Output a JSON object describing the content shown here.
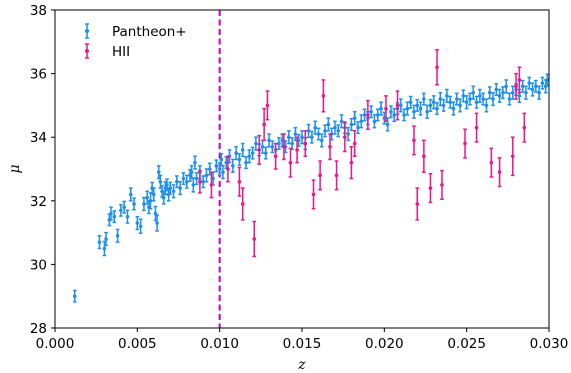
{
  "chart_data": {
    "type": "scatter",
    "xlabel": "z",
    "ylabel": "μ",
    "xlim": [
      0.0,
      0.03
    ],
    "ylim": [
      28,
      38
    ],
    "xticks": [
      0.0,
      0.005,
      0.01,
      0.015,
      0.02,
      0.025,
      0.03
    ],
    "xtick_labels": [
      "0.000",
      "0.005",
      "0.010",
      "0.015",
      "0.020",
      "0.025",
      "0.030"
    ],
    "yticks": [
      28,
      30,
      32,
      34,
      36,
      38
    ],
    "ytick_labels": [
      "28",
      "30",
      "32",
      "34",
      "36",
      "38"
    ],
    "grid": false,
    "legend_position": "top-left",
    "vline": {
      "x": 0.01,
      "color": "#c000c0",
      "style": "dashed"
    },
    "series": [
      {
        "name": "Pantheon+",
        "color": "#1f8fef",
        "points": [
          [
            0.0012,
            29.0,
            0.18
          ],
          [
            0.0027,
            30.7,
            0.2
          ],
          [
            0.003,
            30.5,
            0.22
          ],
          [
            0.0031,
            30.8,
            0.2
          ],
          [
            0.0033,
            31.4,
            0.18
          ],
          [
            0.0034,
            31.6,
            0.2
          ],
          [
            0.0036,
            31.5,
            0.18
          ],
          [
            0.0038,
            30.9,
            0.2
          ],
          [
            0.004,
            31.7,
            0.18
          ],
          [
            0.0042,
            31.8,
            0.18
          ],
          [
            0.0044,
            31.5,
            0.2
          ],
          [
            0.0046,
            32.2,
            0.2
          ],
          [
            0.0048,
            31.9,
            0.18
          ],
          [
            0.005,
            31.3,
            0.2
          ],
          [
            0.0052,
            31.2,
            0.22
          ],
          [
            0.0054,
            31.9,
            0.2
          ],
          [
            0.0056,
            32.1,
            0.2
          ],
          [
            0.0057,
            31.8,
            0.2
          ],
          [
            0.0058,
            32.0,
            0.25
          ],
          [
            0.0059,
            32.4,
            0.18
          ],
          [
            0.006,
            32.2,
            0.2
          ],
          [
            0.0061,
            31.6,
            0.22
          ],
          [
            0.0062,
            31.3,
            0.25
          ],
          [
            0.0063,
            32.9,
            0.2
          ],
          [
            0.0064,
            32.6,
            0.2
          ],
          [
            0.0065,
            32.3,
            0.18
          ],
          [
            0.0066,
            32.1,
            0.2
          ],
          [
            0.0067,
            32.4,
            0.2
          ],
          [
            0.0068,
            32.5,
            0.18
          ],
          [
            0.0069,
            32.2,
            0.2
          ],
          [
            0.007,
            32.4,
            0.18
          ],
          [
            0.0072,
            32.3,
            0.2
          ],
          [
            0.0074,
            32.6,
            0.18
          ],
          [
            0.0076,
            32.4,
            0.2
          ],
          [
            0.0078,
            32.7,
            0.18
          ],
          [
            0.008,
            32.6,
            0.2
          ],
          [
            0.0082,
            32.8,
            0.18
          ],
          [
            0.0083,
            32.9,
            0.2
          ],
          [
            0.0084,
            32.5,
            0.22
          ],
          [
            0.0085,
            33.2,
            0.2
          ],
          [
            0.0086,
            32.7,
            0.18
          ],
          [
            0.0088,
            32.9,
            0.2
          ],
          [
            0.009,
            32.6,
            0.18
          ],
          [
            0.0092,
            32.8,
            0.2
          ],
          [
            0.0094,
            33.0,
            0.18
          ],
          [
            0.0096,
            32.7,
            0.2
          ],
          [
            0.0098,
            33.1,
            0.18
          ],
          [
            0.01,
            33.0,
            0.2
          ],
          [
            0.0101,
            33.3,
            0.18
          ],
          [
            0.0102,
            32.9,
            0.2
          ],
          [
            0.0104,
            33.2,
            0.18
          ],
          [
            0.0106,
            33.4,
            0.2
          ],
          [
            0.0108,
            33.1,
            0.2
          ],
          [
            0.011,
            33.5,
            0.2
          ],
          [
            0.0112,
            33.3,
            0.18
          ],
          [
            0.0114,
            33.6,
            0.2
          ],
          [
            0.0116,
            33.2,
            0.18
          ],
          [
            0.0118,
            33.4,
            0.2
          ],
          [
            0.012,
            33.5,
            0.18
          ],
          [
            0.0122,
            33.8,
            0.2
          ],
          [
            0.0124,
            33.6,
            0.18
          ],
          [
            0.0126,
            33.7,
            0.2
          ],
          [
            0.0128,
            33.5,
            0.18
          ],
          [
            0.013,
            33.9,
            0.2
          ],
          [
            0.0132,
            33.7,
            0.18
          ],
          [
            0.0134,
            33.6,
            0.2
          ],
          [
            0.0136,
            33.8,
            0.18
          ],
          [
            0.0138,
            33.9,
            0.2
          ],
          [
            0.014,
            33.7,
            0.18
          ],
          [
            0.0142,
            34.0,
            0.2
          ],
          [
            0.0144,
            33.8,
            0.18
          ],
          [
            0.0146,
            34.1,
            0.2
          ],
          [
            0.0148,
            33.9,
            0.18
          ],
          [
            0.015,
            34.0,
            0.2
          ],
          [
            0.0152,
            33.8,
            0.18
          ],
          [
            0.0154,
            34.2,
            0.2
          ],
          [
            0.0156,
            34.0,
            0.18
          ],
          [
            0.0158,
            34.3,
            0.2
          ],
          [
            0.016,
            34.1,
            0.18
          ],
          [
            0.0162,
            33.9,
            0.2
          ],
          [
            0.0164,
            34.2,
            0.18
          ],
          [
            0.0166,
            34.4,
            0.2
          ],
          [
            0.0168,
            34.1,
            0.18
          ],
          [
            0.017,
            34.3,
            0.2
          ],
          [
            0.0172,
            34.2,
            0.18
          ],
          [
            0.0174,
            34.5,
            0.2
          ],
          [
            0.0176,
            34.3,
            0.18
          ],
          [
            0.0178,
            34.1,
            0.2
          ],
          [
            0.018,
            34.4,
            0.18
          ],
          [
            0.0182,
            34.6,
            0.2
          ],
          [
            0.0184,
            34.3,
            0.18
          ],
          [
            0.0186,
            34.5,
            0.2
          ],
          [
            0.0188,
            34.7,
            0.18
          ],
          [
            0.019,
            34.6,
            0.2
          ],
          [
            0.0192,
            34.8,
            0.18
          ],
          [
            0.0194,
            34.5,
            0.2
          ],
          [
            0.0196,
            34.7,
            0.18
          ],
          [
            0.0198,
            34.9,
            0.2
          ],
          [
            0.02,
            34.6,
            0.18
          ],
          [
            0.0202,
            34.4,
            0.2
          ],
          [
            0.0204,
            34.8,
            0.18
          ],
          [
            0.0206,
            34.7,
            0.2
          ],
          [
            0.0208,
            34.9,
            0.18
          ],
          [
            0.021,
            35.0,
            0.2
          ],
          [
            0.0212,
            34.7,
            0.18
          ],
          [
            0.0214,
            34.9,
            0.2
          ],
          [
            0.0216,
            35.1,
            0.18
          ],
          [
            0.0218,
            34.8,
            0.2
          ],
          [
            0.022,
            35.0,
            0.18
          ],
          [
            0.0222,
            34.9,
            0.2
          ],
          [
            0.0224,
            35.2,
            0.18
          ],
          [
            0.0226,
            34.8,
            0.2
          ],
          [
            0.0228,
            35.0,
            0.18
          ],
          [
            0.023,
            35.1,
            0.2
          ],
          [
            0.0232,
            34.9,
            0.18
          ],
          [
            0.0234,
            35.2,
            0.2
          ],
          [
            0.0236,
            35.0,
            0.18
          ],
          [
            0.0238,
            35.3,
            0.2
          ],
          [
            0.024,
            35.1,
            0.18
          ],
          [
            0.0242,
            34.9,
            0.2
          ],
          [
            0.0244,
            35.2,
            0.18
          ],
          [
            0.0246,
            35.0,
            0.2
          ],
          [
            0.0248,
            35.3,
            0.18
          ],
          [
            0.025,
            35.1,
            0.2
          ],
          [
            0.0252,
            35.2,
            0.18
          ],
          [
            0.0254,
            35.4,
            0.2
          ],
          [
            0.0256,
            35.1,
            0.18
          ],
          [
            0.0258,
            35.3,
            0.2
          ],
          [
            0.026,
            35.2,
            0.18
          ],
          [
            0.0262,
            35.0,
            0.2
          ],
          [
            0.0264,
            35.4,
            0.18
          ],
          [
            0.0266,
            35.2,
            0.2
          ],
          [
            0.0268,
            35.5,
            0.18
          ],
          [
            0.027,
            35.3,
            0.2
          ],
          [
            0.0272,
            35.4,
            0.18
          ],
          [
            0.0274,
            35.6,
            0.2
          ],
          [
            0.0276,
            35.2,
            0.18
          ],
          [
            0.0278,
            35.4,
            0.2
          ],
          [
            0.028,
            35.5,
            0.18
          ],
          [
            0.0282,
            35.3,
            0.2
          ],
          [
            0.0284,
            35.6,
            0.18
          ],
          [
            0.0286,
            35.4,
            0.2
          ],
          [
            0.0288,
            35.7,
            0.18
          ],
          [
            0.029,
            35.5,
            0.2
          ],
          [
            0.0292,
            35.6,
            0.18
          ],
          [
            0.0294,
            35.4,
            0.2
          ],
          [
            0.0296,
            35.7,
            0.18
          ],
          [
            0.0298,
            35.6,
            0.2
          ],
          [
            0.0299,
            35.8,
            0.18
          ]
        ]
      },
      {
        "name": "HII",
        "color": "#f0148c",
        "points": [
          [
            0.0088,
            32.6,
            0.35
          ],
          [
            0.0095,
            32.5,
            0.4
          ],
          [
            0.0105,
            33.0,
            0.4
          ],
          [
            0.0112,
            32.6,
            0.45
          ],
          [
            0.0114,
            31.9,
            0.5
          ],
          [
            0.0121,
            30.8,
            0.55
          ],
          [
            0.0124,
            33.6,
            0.45
          ],
          [
            0.0127,
            34.4,
            0.5
          ],
          [
            0.0129,
            35.0,
            0.45
          ],
          [
            0.0134,
            33.4,
            0.4
          ],
          [
            0.0139,
            33.7,
            0.4
          ],
          [
            0.0143,
            33.2,
            0.45
          ],
          [
            0.0147,
            33.6,
            0.4
          ],
          [
            0.0152,
            33.8,
            0.4
          ],
          [
            0.0157,
            32.2,
            0.45
          ],
          [
            0.0161,
            32.8,
            0.45
          ],
          [
            0.0163,
            35.3,
            0.5
          ],
          [
            0.0167,
            33.7,
            0.4
          ],
          [
            0.0171,
            32.8,
            0.45
          ],
          [
            0.0176,
            34.0,
            0.45
          ],
          [
            0.018,
            33.2,
            0.5
          ],
          [
            0.0182,
            33.8,
            0.4
          ],
          [
            0.019,
            34.7,
            0.45
          ],
          [
            0.0201,
            34.9,
            0.4
          ],
          [
            0.0208,
            35.0,
            0.45
          ],
          [
            0.0218,
            33.9,
            0.45
          ],
          [
            0.022,
            31.9,
            0.5
          ],
          [
            0.0224,
            33.4,
            0.5
          ],
          [
            0.0228,
            32.4,
            0.45
          ],
          [
            0.0232,
            36.2,
            0.55
          ],
          [
            0.0235,
            32.5,
            0.45
          ],
          [
            0.0249,
            33.8,
            0.45
          ],
          [
            0.0256,
            34.3,
            0.45
          ],
          [
            0.0265,
            33.2,
            0.45
          ],
          [
            0.027,
            32.9,
            0.45
          ],
          [
            0.0278,
            33.4,
            0.6
          ],
          [
            0.028,
            35.6,
            0.4
          ],
          [
            0.0282,
            35.8,
            0.4
          ],
          [
            0.0285,
            34.3,
            0.45
          ]
        ]
      }
    ]
  }
}
